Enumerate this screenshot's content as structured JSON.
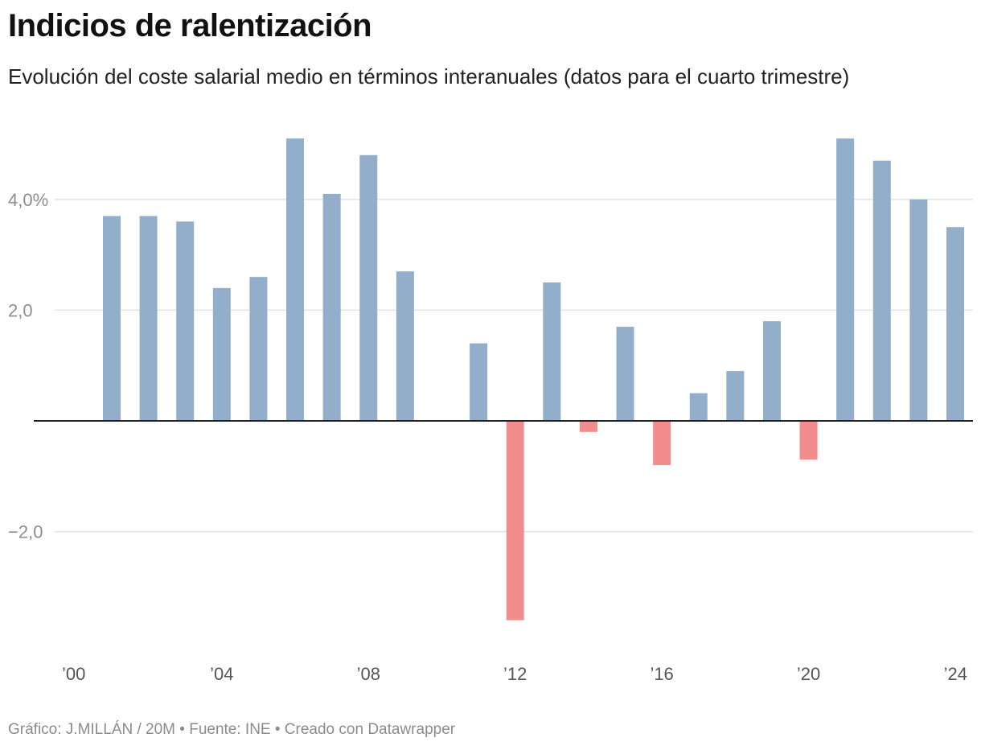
{
  "chart_data": {
    "type": "bar",
    "title": "Indicios de ralentización",
    "subtitle": "Evolución del coste salarial medio en términos interanuales (datos para el cuarto trimestre)",
    "xlabel": "",
    "ylabel": "",
    "ylim": [
      -4.2,
      5.3
    ],
    "y_ticks": [
      {
        "value": 4,
        "label": "4,0%"
      },
      {
        "value": 2,
        "label": "2,0"
      },
      {
        "value": -2,
        "label": "−2,0"
      }
    ],
    "x_ticks": [
      {
        "value": 2000,
        "label": "’00"
      },
      {
        "value": 2004,
        "label": "’04"
      },
      {
        "value": 2008,
        "label": "’08"
      },
      {
        "value": 2012,
        "label": "’12"
      },
      {
        "value": 2016,
        "label": "’16"
      },
      {
        "value": 2020,
        "label": "’20"
      },
      {
        "value": 2024,
        "label": "’24"
      }
    ],
    "x_range": [
      2000,
      2024
    ],
    "categories": [
      2001,
      2002,
      2003,
      2004,
      2005,
      2006,
      2007,
      2008,
      2009,
      2011,
      2012,
      2013,
      2014,
      2015,
      2016,
      2017,
      2018,
      2019,
      2020,
      2021,
      2022,
      2023,
      2024
    ],
    "values": [
      3.7,
      3.7,
      3.6,
      2.4,
      2.6,
      5.1,
      4.1,
      4.8,
      2.7,
      1.4,
      -3.6,
      2.5,
      -0.2,
      1.7,
      -0.8,
      0.5,
      0.9,
      1.8,
      -0.7,
      5.1,
      4.7,
      4.0,
      3.5
    ],
    "colors": {
      "positive": "#93aecb",
      "negative": "#f28d8d",
      "grid": "#e3e3e3",
      "baseline": "#222222"
    },
    "grid": true,
    "legend": "none"
  },
  "footer": {
    "text": "Gráfico: J.MILLÁN / 20M • Fuente: INE • Creado con Datawrapper"
  }
}
